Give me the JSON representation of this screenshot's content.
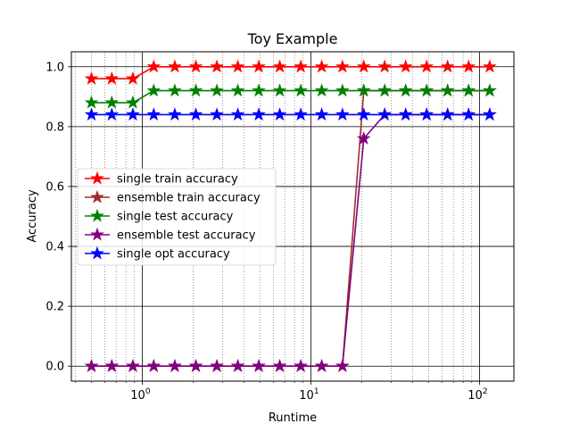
{
  "chart_data": {
    "type": "line",
    "title": "Toy Example",
    "xlabel": "Runtime",
    "ylabel": "Accuracy",
    "xscale": "log",
    "xlim": [
      0.38,
      160
    ],
    "ylim": [
      -0.05,
      1.05
    ],
    "x_ticks": [
      {
        "value": 1,
        "base": "10",
        "exp": "0"
      },
      {
        "value": 10,
        "base": "10",
        "exp": "1"
      },
      {
        "value": 100,
        "base": "10",
        "exp": "2"
      }
    ],
    "y_ticks": [
      "0.0",
      "0.2",
      "0.4",
      "0.6",
      "0.8",
      "1.0"
    ],
    "grid": "major and minor (x), major (y)",
    "legend_position": "center-left",
    "marker": "star",
    "series": [
      {
        "name": "single train accuracy",
        "color": "#ff0000",
        "x": [
          0.5,
          0.66,
          0.88,
          1.17,
          1.56,
          2.08,
          2.77,
          3.69,
          4.91,
          6.54,
          8.71,
          11.6,
          15.4,
          20.6,
          27.4,
          36.5,
          48.6,
          64.7,
          86.2,
          115
        ],
        "y": [
          0.96,
          0.96,
          0.96,
          1.0,
          1.0,
          1.0,
          1.0,
          1.0,
          1.0,
          1.0,
          1.0,
          1.0,
          1.0,
          1.0,
          1.0,
          1.0,
          1.0,
          1.0,
          1.0,
          1.0
        ]
      },
      {
        "name": "ensemble train accuracy",
        "color": "#a52a2a",
        "x": [
          0.5,
          0.66,
          0.88,
          1.17,
          1.56,
          2.08,
          2.77,
          3.69,
          4.91,
          6.54,
          8.71,
          11.6,
          15.4,
          20.6,
          27.4,
          36.5,
          48.6,
          64.7,
          86.2,
          115
        ],
        "y": [
          0.0,
          0.0,
          0.0,
          0.0,
          0.0,
          0.0,
          0.0,
          0.0,
          0.0,
          0.0,
          0.0,
          0.0,
          0.0,
          0.92,
          0.92,
          0.92,
          0.92,
          0.92,
          0.92,
          0.92
        ]
      },
      {
        "name": "single test accuracy",
        "color": "#008000",
        "x": [
          0.5,
          0.66,
          0.88,
          1.17,
          1.56,
          2.08,
          2.77,
          3.69,
          4.91,
          6.54,
          8.71,
          11.6,
          15.4,
          20.6,
          27.4,
          36.5,
          48.6,
          64.7,
          86.2,
          115
        ],
        "y": [
          0.88,
          0.88,
          0.88,
          0.92,
          0.92,
          0.92,
          0.92,
          0.92,
          0.92,
          0.92,
          0.92,
          0.92,
          0.92,
          0.92,
          0.92,
          0.92,
          0.92,
          0.92,
          0.92,
          0.92
        ]
      },
      {
        "name": "ensemble test accuracy",
        "color": "#800080",
        "x": [
          0.5,
          0.66,
          0.88,
          1.17,
          1.56,
          2.08,
          2.77,
          3.69,
          4.91,
          6.54,
          8.71,
          11.6,
          15.4,
          20.6,
          27.4,
          36.5,
          48.6,
          64.7,
          86.2,
          115
        ],
        "y": [
          0.0,
          0.0,
          0.0,
          0.0,
          0.0,
          0.0,
          0.0,
          0.0,
          0.0,
          0.0,
          0.0,
          0.0,
          0.0,
          0.76,
          0.84,
          0.84,
          0.84,
          0.84,
          0.84,
          0.84
        ]
      },
      {
        "name": "single opt accuracy",
        "color": "#0000ff",
        "x": [
          0.5,
          0.66,
          0.88,
          1.17,
          1.56,
          2.08,
          2.77,
          3.69,
          4.91,
          6.54,
          8.71,
          11.6,
          15.4,
          20.6,
          27.4,
          36.5,
          48.6,
          64.7,
          86.2,
          115
        ],
        "y": [
          0.84,
          0.84,
          0.84,
          0.84,
          0.84,
          0.84,
          0.84,
          0.84,
          0.84,
          0.84,
          0.84,
          0.84,
          0.84,
          0.84,
          0.84,
          0.84,
          0.84,
          0.84,
          0.84,
          0.84
        ]
      }
    ]
  }
}
